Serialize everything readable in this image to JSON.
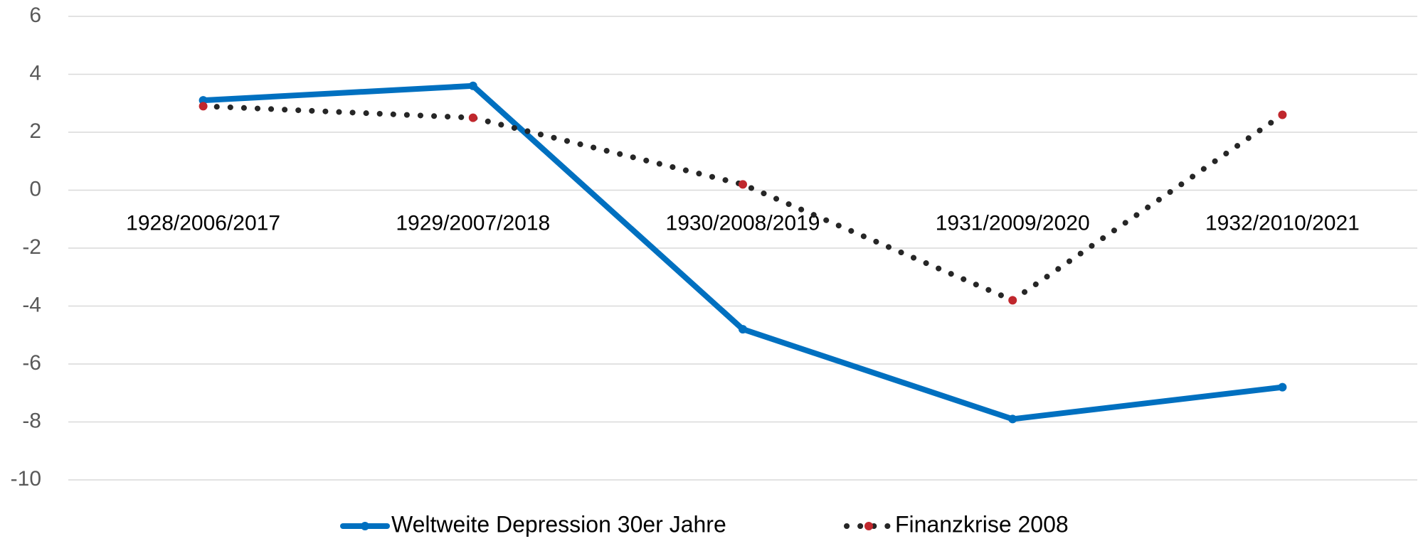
{
  "chart_data": {
    "type": "line",
    "categories": [
      "1928/2006/2017",
      "1929/2007/2018",
      "1930/2008/2019",
      "1931/2009/2020",
      "1932/2010/2021"
    ],
    "series": [
      {
        "name": "Weltweite Depression 30er Jahre",
        "color": "#0070c0",
        "marker_color": "#0070c0",
        "line_style": "solid",
        "values": [
          3.1,
          3.6,
          -4.8,
          -7.9,
          -6.8
        ]
      },
      {
        "name": "Finanzkrise 2008",
        "color": "#262626",
        "marker_color": "#c0272d",
        "line_style": "dotted",
        "values": [
          2.9,
          2.5,
          0.2,
          -3.8,
          2.6
        ]
      }
    ],
    "ylim": [
      -10,
      6
    ],
    "yticks": [
      -10,
      -8,
      -6,
      -4,
      -2,
      0,
      2,
      4,
      6
    ],
    "grid": true,
    "legend": "bottom"
  }
}
